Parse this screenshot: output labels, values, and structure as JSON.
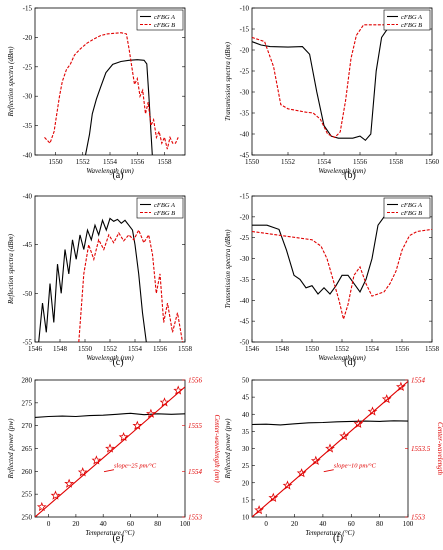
{
  "chart_data": [
    {
      "id": "a",
      "type": "line",
      "caption": "(a)",
      "xlabel": "Wavelength (nm)",
      "ylabel": "Reflection spectra (dBm)",
      "xlim": [
        1548.5,
        1559.5
      ],
      "ylim": [
        -40,
        -15
      ],
      "xticks": [
        1550,
        1552,
        1554,
        1556,
        1558
      ],
      "yticks": [
        -40,
        -35,
        -30,
        -25,
        -20,
        -15
      ],
      "legend": "top-right",
      "series": [
        {
          "name": "cFBG A",
          "color": "#000000",
          "dash": "solid",
          "x": [
            1552.2,
            1552.5,
            1552.7,
            1553.0,
            1553.3,
            1553.7,
            1554.2,
            1554.8,
            1555.4,
            1556.0,
            1556.5,
            1556.7,
            1556.85,
            1557.0,
            1557.1
          ],
          "y": [
            -40,
            -36.5,
            -33,
            -30.5,
            -28.5,
            -26,
            -24.6,
            -24.1,
            -23.9,
            -23.8,
            -23.9,
            -24.5,
            -30,
            -36,
            -40
          ]
        },
        {
          "name": "cFBG B",
          "color": "#e00000",
          "dash": "dashed",
          "x": [
            1549.2,
            1549.6,
            1549.9,
            1550.1,
            1550.3,
            1550.5,
            1550.8,
            1551.1,
            1551.4,
            1551.8,
            1552.3,
            1552.8,
            1553.3,
            1553.8,
            1554.3,
            1554.8,
            1555.2,
            1555.4,
            1555.6,
            1555.8,
            1556.0,
            1556.2,
            1556.4,
            1556.6,
            1556.8,
            1557.0,
            1557.2,
            1557.4,
            1557.6,
            1557.8,
            1558.0,
            1558.2,
            1558.4,
            1558.6,
            1558.8,
            1559.0
          ],
          "y": [
            -37,
            -38,
            -36,
            -33,
            -30,
            -27.5,
            -25.5,
            -24.5,
            -23,
            -22,
            -21,
            -20.3,
            -19.7,
            -19.4,
            -19.3,
            -19.2,
            -19.4,
            -22,
            -25,
            -28,
            -27,
            -30,
            -29,
            -33,
            -31,
            -35,
            -34,
            -37,
            -36,
            -38,
            -37,
            -39,
            -37,
            -38,
            -38,
            -37
          ]
        }
      ]
    },
    {
      "id": "b",
      "type": "line",
      "caption": "(b)",
      "xlabel": "Wavelength (nm)",
      "ylabel": "Transmission spectra (dBm)",
      "xlim": [
        1550,
        1560
      ],
      "ylim": [
        -45,
        -10
      ],
      "xticks": [
        1550,
        1552,
        1554,
        1556,
        1558,
        1560
      ],
      "yticks": [
        -45,
        -40,
        -35,
        -30,
        -25,
        -20,
        -15,
        -10
      ],
      "legend": "top-right",
      "series": [
        {
          "name": "cFBG A",
          "color": "#000000",
          "dash": "solid",
          "x": [
            1550,
            1550.5,
            1551,
            1552,
            1552.8,
            1553.2,
            1553.6,
            1554.0,
            1554.4,
            1554.8,
            1555.2,
            1555.6,
            1556.0,
            1556.3,
            1556.6,
            1556.9,
            1557.2,
            1557.6,
            1558.0
          ],
          "y": [
            -18,
            -18.8,
            -19.2,
            -19.3,
            -19.2,
            -21,
            -30,
            -38,
            -40.5,
            -41,
            -41,
            -41,
            -40.5,
            -41.5,
            -40,
            -25,
            -17,
            -14.5,
            -14.5
          ]
        },
        {
          "name": "cFBG B",
          "color": "#e00000",
          "dash": "dashed",
          "x": [
            1550,
            1550.7,
            1551.2,
            1551.6,
            1552.0,
            1552.6,
            1553.0,
            1553.4,
            1553.8,
            1554.2,
            1554.6,
            1554.9,
            1555.2,
            1555.5,
            1555.8,
            1556.2,
            1557.0,
            1558.0
          ],
          "y": [
            -17,
            -18,
            -24,
            -33,
            -34,
            -34.5,
            -34.8,
            -35,
            -36.5,
            -40,
            -40.8,
            -39.5,
            -32,
            -22,
            -16.5,
            -14,
            -14,
            -14
          ]
        }
      ]
    },
    {
      "id": "c",
      "type": "line",
      "caption": "(c)",
      "xlabel": "Wavelength (nm)",
      "ylabel": "Reflection spectra (dBm)",
      "xlim": [
        1546,
        1558
      ],
      "ylim": [
        -55,
        -40
      ],
      "xticks": [
        1546,
        1548,
        1550,
        1552,
        1554,
        1556,
        1558
      ],
      "yticks": [
        -55,
        -50,
        -45,
        -40
      ],
      "legend": "top-right",
      "series": [
        {
          "name": "cFBG A",
          "color": "#000000",
          "dash": "solid",
          "x": [
            1546.3,
            1546.6,
            1546.9,
            1547.2,
            1547.5,
            1547.8,
            1548.1,
            1548.4,
            1548.7,
            1549.0,
            1549.3,
            1549.6,
            1549.9,
            1550.2,
            1550.5,
            1550.8,
            1551.1,
            1551.4,
            1551.7,
            1552.0,
            1552.3,
            1552.6,
            1552.9,
            1553.2,
            1553.5,
            1553.8,
            1554.0,
            1554.3,
            1554.6,
            1554.9
          ],
          "y": [
            -55,
            -51,
            -54,
            -49,
            -53,
            -47,
            -50,
            -45.5,
            -48,
            -44.5,
            -46.5,
            -44,
            -45.5,
            -43.5,
            -44.5,
            -43,
            -44,
            -42.5,
            -43.5,
            -42.3,
            -42.6,
            -42.4,
            -42.8,
            -42.5,
            -43,
            -43.5,
            -45,
            -48,
            -52,
            -55
          ]
        },
        {
          "name": "cFBG B",
          "color": "#e00000",
          "dash": "dashed",
          "x": [
            1549.5,
            1549.9,
            1550.3,
            1550.7,
            1551.1,
            1551.5,
            1551.9,
            1552.3,
            1552.7,
            1553.1,
            1553.5,
            1553.9,
            1554.3,
            1554.7,
            1555.1,
            1555.4,
            1555.7,
            1556.0,
            1556.3,
            1556.6,
            1557.0,
            1557.4,
            1557.8
          ],
          "y": [
            -55,
            -48,
            -45,
            -46.5,
            -44.5,
            -45.5,
            -44,
            -44.8,
            -43.8,
            -44.6,
            -44,
            -44.5,
            -43.5,
            -44.8,
            -44,
            -46,
            -50,
            -48,
            -53,
            -51,
            -54,
            -52,
            -55
          ]
        }
      ]
    },
    {
      "id": "d",
      "type": "line",
      "caption": "(d)",
      "xlabel": "Wavelength (nm)",
      "ylabel": "Transmission spectra (dBm)",
      "xlim": [
        1546,
        1558
      ],
      "ylim": [
        -50,
        -15
      ],
      "xticks": [
        1546,
        1548,
        1550,
        1552,
        1554,
        1556,
        1558
      ],
      "yticks": [
        -50,
        -45,
        -40,
        -35,
        -30,
        -25,
        -20,
        -15
      ],
      "legend": "top-right",
      "series": [
        {
          "name": "cFBG A",
          "color": "#000000",
          "dash": "solid",
          "x": [
            1546,
            1547,
            1547.8,
            1548.3,
            1548.8,
            1549.2,
            1549.6,
            1550.0,
            1550.4,
            1550.8,
            1551.2,
            1551.6,
            1552.0,
            1552.4,
            1552.8,
            1553.2,
            1553.6,
            1554.0,
            1554.4,
            1554.8,
            1555.2,
            1556
          ],
          "y": [
            -22,
            -22,
            -23,
            -28,
            -34,
            -35,
            -37,
            -36.5,
            -38.5,
            -37,
            -38.5,
            -36.5,
            -34,
            -34,
            -36,
            -38,
            -35,
            -30,
            -22,
            -20,
            -19.5,
            -19.5
          ]
        },
        {
          "name": "cFBG B",
          "color": "#e00000",
          "dash": "dashed",
          "x": [
            1546,
            1547,
            1548,
            1549,
            1550,
            1550.6,
            1551.0,
            1551.4,
            1551.8,
            1552.1,
            1552.4,
            1552.8,
            1553.2,
            1553.6,
            1554.0,
            1554.4,
            1554.8,
            1555.2,
            1555.6,
            1556.0,
            1556.5,
            1557,
            1558
          ],
          "y": [
            -23.5,
            -24,
            -24.5,
            -25,
            -25.5,
            -27,
            -30,
            -35,
            -40,
            -44.5,
            -41,
            -34,
            -32,
            -36,
            -39,
            -38.5,
            -38,
            -36,
            -33,
            -28,
            -24.5,
            -23.5,
            -23
          ]
        }
      ]
    },
    {
      "id": "e",
      "type": "line",
      "caption": "(e)",
      "xlabel": "Temperature (°C)",
      "ylabel": "Reflected power (pw)",
      "y2label": "Center-wavelength (nm)",
      "xlim": [
        -10,
        100
      ],
      "ylim": [
        250,
        280
      ],
      "y2lim": [
        1553,
        1556
      ],
      "xticks": [
        0,
        20,
        40,
        60,
        80,
        100
      ],
      "yticks": [
        250,
        255,
        260,
        265,
        270,
        275,
        280
      ],
      "y2ticks": [
        1553,
        1554,
        1555,
        1556
      ],
      "annotation": "slope~25 pm/°C",
      "series": [
        {
          "name": "Reflected power",
          "axis": "left",
          "color": "#000000",
          "dash": "solid",
          "marker": "none",
          "x": [
            -10,
            0,
            10,
            20,
            30,
            40,
            50,
            60,
            70,
            80,
            90,
            100
          ],
          "y": [
            271.8,
            272.0,
            272.1,
            272.0,
            272.2,
            272.3,
            272.5,
            272.7,
            272.4,
            272.6,
            272.5,
            272.6
          ]
        },
        {
          "name": "Center-wavelength fit",
          "axis": "right",
          "color": "#e00000",
          "dash": "solid",
          "marker": "none",
          "x": [
            -10,
            100
          ],
          "y": [
            1553.0,
            1555.85
          ]
        },
        {
          "name": "Center-wavelength",
          "axis": "right",
          "color": "#e00000",
          "dash": "none",
          "marker": "star",
          "x": [
            -5,
            5,
            15,
            25,
            35,
            45,
            55,
            65,
            75,
            85,
            95
          ],
          "y": [
            1553.22,
            1553.47,
            1553.73,
            1553.98,
            1554.24,
            1554.5,
            1554.75,
            1555.0,
            1555.26,
            1555.51,
            1555.77
          ]
        }
      ]
    },
    {
      "id": "f",
      "type": "line",
      "caption": "(f)",
      "xlabel": "Temperature (°C)",
      "ylabel": "Reflected power (pw)",
      "y2label": "Center-wavelength",
      "xlim": [
        -10,
        100
      ],
      "ylim": [
        10,
        50
      ],
      "y2lim": [
        1553,
        1554
      ],
      "xticks": [
        0,
        20,
        40,
        60,
        80,
        100
      ],
      "yticks": [
        10,
        15,
        20,
        25,
        30,
        35,
        40,
        45,
        50
      ],
      "y2ticks": [
        1553,
        1553.5,
        1554
      ],
      "y2ticklabels": [
        "1553",
        "1553.5",
        "1554"
      ],
      "annotation": "slope~10 pm/°C",
      "series": [
        {
          "name": "Reflected power",
          "axis": "left",
          "color": "#000000",
          "dash": "solid",
          "marker": "none",
          "x": [
            -10,
            0,
            10,
            20,
            30,
            40,
            50,
            60,
            70,
            80,
            90,
            100
          ],
          "y": [
            37.0,
            37.1,
            36.9,
            37.2,
            37.5,
            37.6,
            37.8,
            37.9,
            38.0,
            37.9,
            38.1,
            38.0
          ]
        },
        {
          "name": "Center-wavelength fit",
          "axis": "right",
          "color": "#e00000",
          "dash": "solid",
          "marker": "none",
          "x": [
            -10,
            100
          ],
          "y": [
            1553.0,
            1553.99
          ]
        },
        {
          "name": "Center-wavelength",
          "axis": "right",
          "color": "#e00000",
          "dash": "none",
          "marker": "star",
          "x": [
            -5,
            5,
            15,
            25,
            35,
            45,
            55,
            65,
            75,
            85,
            95
          ],
          "y": [
            1553.05,
            1553.14,
            1553.23,
            1553.32,
            1553.41,
            1553.5,
            1553.59,
            1553.68,
            1553.77,
            1553.86,
            1553.95
          ]
        }
      ]
    }
  ]
}
